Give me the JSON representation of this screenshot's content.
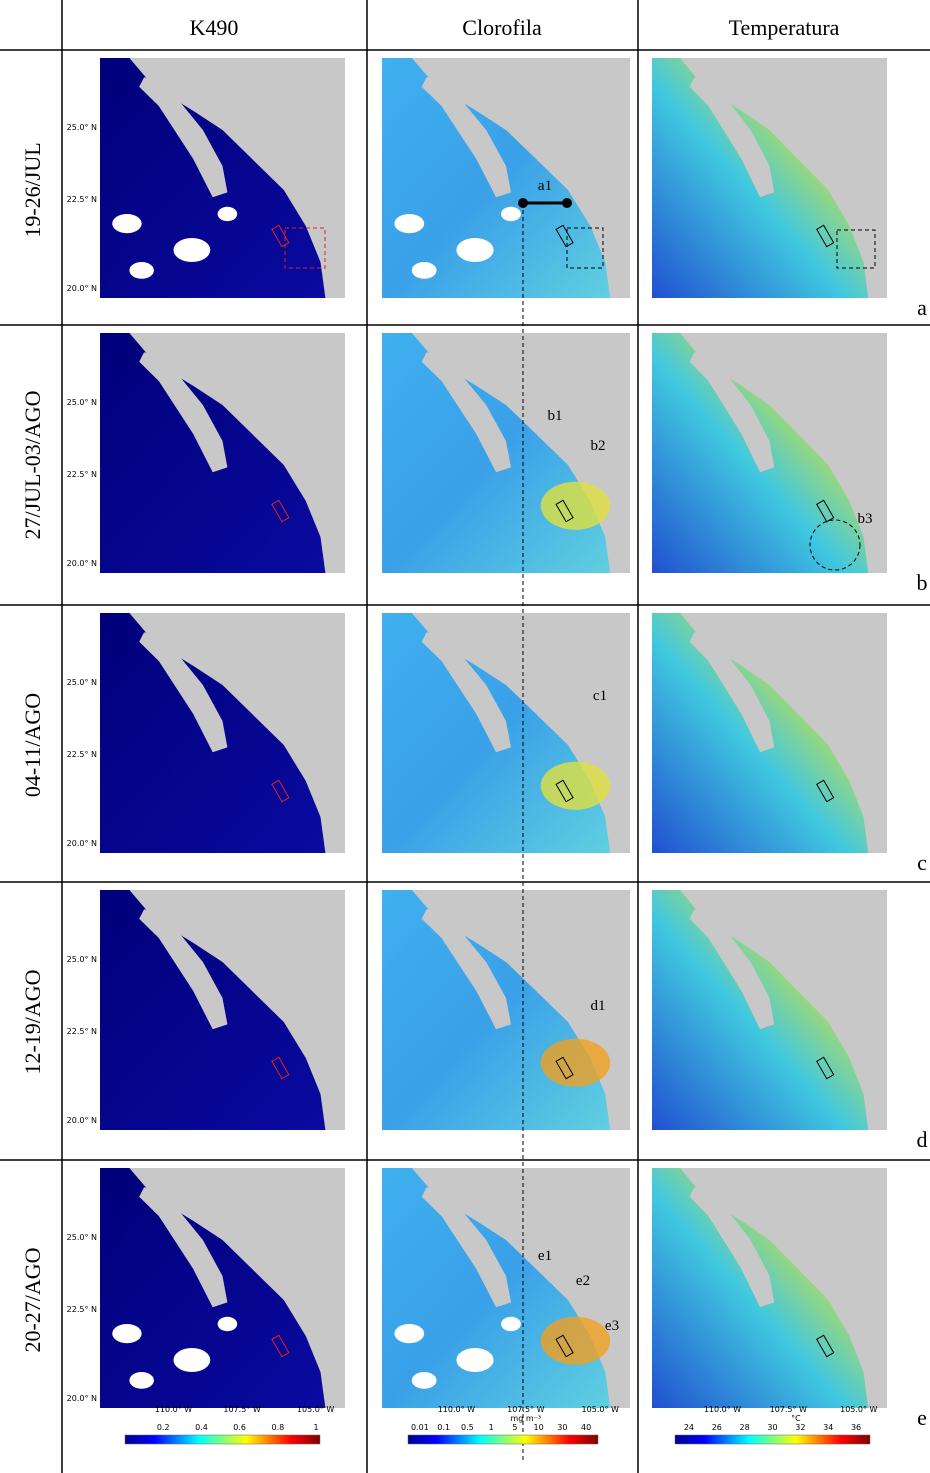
{
  "header": {
    "columns": [
      "K490",
      "Clorofila",
      "Temperatura"
    ]
  },
  "rows": [
    {
      "label": "19-26/JUL",
      "panel": "a",
      "annotations": [
        "a1"
      ]
    },
    {
      "label": "27/JUL-03/AGO",
      "panel": "b",
      "annotations": [
        "b1",
        "b2",
        "b3"
      ]
    },
    {
      "label": "04-11/AGO",
      "panel": "c",
      "annotations": [
        "c1"
      ]
    },
    {
      "label": "12-19/AGO",
      "panel": "d",
      "annotations": [
        "d1"
      ]
    },
    {
      "label": "20-27/AGO",
      "panel": "e",
      "annotations": [
        "e1",
        "e2",
        "e3"
      ]
    }
  ],
  "lat_labels": [
    "25.0° N",
    "22.5° N",
    "20.0° N"
  ],
  "lon_labels": [
    "110.0° W",
    "107.5° W",
    "105.0° W"
  ],
  "colorbars": [
    {
      "ticks": [
        "0.2",
        "0.4",
        "0.6",
        "0.8",
        "1"
      ]
    },
    {
      "ticks": [
        "0.01",
        "0.1",
        "0.5",
        "1",
        "5",
        "10",
        "30",
        "40"
      ],
      "unit": "mg m⁻³"
    },
    {
      "ticks": [
        "24",
        "26",
        "28",
        "30",
        "32",
        "34",
        "36"
      ],
      "unit": "°C"
    }
  ]
}
